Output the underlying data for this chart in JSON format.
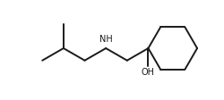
{
  "bg_color": "#ffffff",
  "line_color": "#1a1a1a",
  "line_width": 1.4,
  "font_color": "#1a1a1a",
  "nh_label": "NH",
  "oh_label": "OH",
  "nh_fontsize": 7.0,
  "oh_fontsize": 7.0,
  "figsize": [
    2.5,
    1.12
  ],
  "dpi": 100
}
